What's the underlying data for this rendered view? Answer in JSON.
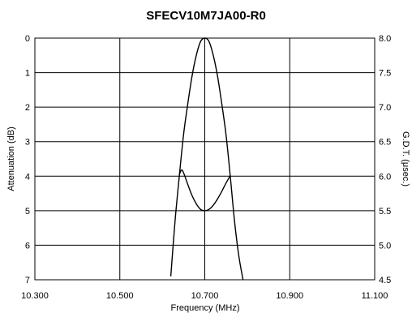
{
  "chart_data": {
    "type": "line",
    "title": "SFECV10M7JA00-R0",
    "xlabel": "Frequency (MHz)",
    "ylabel_left": "Attenuation (dB)",
    "ylabel_right": "G.D.T. (μsec.)",
    "xlim": [
      10.3,
      11.1
    ],
    "ylim_left": [
      0,
      7
    ],
    "ylim_right": [
      4.5,
      8.0
    ],
    "left_axis_inverted": true,
    "grid": true,
    "x_tick_labels": [
      "10.300",
      "10.500",
      "10.700",
      "10.900",
      "11.100"
    ],
    "y_left_tick_labels": [
      "0",
      "1",
      "2",
      "3",
      "4",
      "5",
      "6",
      "7"
    ],
    "y_right_tick_labels": [
      "8.0",
      "7.5",
      "7.0",
      "6.5",
      "6.0",
      "5.5",
      "5.0",
      "4.5"
    ],
    "series": [
      {
        "axis": "left",
        "x": [
          10.62,
          10.63,
          10.64,
          10.65,
          10.66,
          10.67,
          10.68,
          10.69,
          10.7,
          10.71,
          10.72,
          10.73,
          10.74,
          10.75,
          10.76,
          10.77,
          10.78,
          10.79
        ],
        "y": [
          6.9,
          5.3,
          4.0,
          2.8,
          1.9,
          1.1,
          0.5,
          0.1,
          0.0,
          0.1,
          0.5,
          1.1,
          1.9,
          2.8,
          4.0,
          5.3,
          6.3,
          7.0
        ]
      },
      {
        "axis": "right",
        "x": [
          10.64,
          10.645,
          10.65,
          10.66,
          10.67,
          10.68,
          10.69,
          10.7,
          10.71,
          10.72,
          10.73,
          10.74,
          10.75,
          10.76
        ],
        "y": [
          6.02,
          6.09,
          6.05,
          5.88,
          5.72,
          5.6,
          5.52,
          5.5,
          5.52,
          5.58,
          5.67,
          5.78,
          5.9,
          6.01
        ]
      }
    ]
  }
}
